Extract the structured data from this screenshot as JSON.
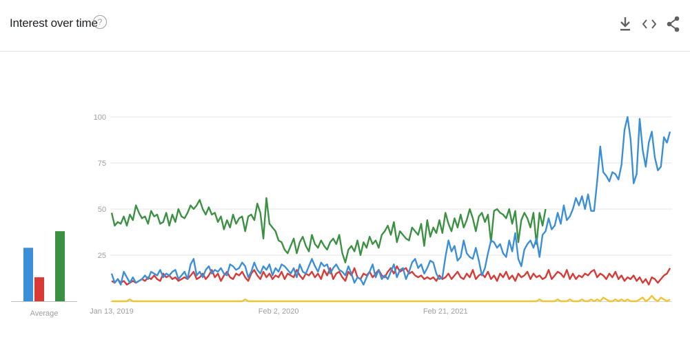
{
  "header": {
    "title": "Interest over time",
    "help_glyph": "?",
    "icons": [
      "download-icon",
      "embed-code-icon",
      "share-icon"
    ]
  },
  "colors": {
    "blue": "#3b8fd9",
    "red": "#d93a36",
    "yellow": "#f2c230",
    "green": "#3b9142",
    "grid": "#e6e6e6",
    "axis_text": "#9e9e9e"
  },
  "average": {
    "label": "Average",
    "values": [
      29,
      13,
      38
    ]
  },
  "chart_data": {
    "type": "line",
    "yticks": [
      25,
      50,
      75,
      100
    ],
    "ylim": [
      0,
      100
    ],
    "xtick_labels": [
      "Jan 13, 2019",
      "Feb 2, 2020",
      "Feb 21, 2021"
    ],
    "xtick_index": [
      0,
      55,
      110
    ],
    "series": [
      {
        "color": "blue",
        "values": [
          15,
          10,
          12,
          9,
          16,
          13,
          10,
          13,
          10,
          11,
          12,
          14,
          12,
          16,
          15,
          14,
          17,
          13,
          15,
          14,
          16,
          17,
          12,
          14,
          16,
          12,
          20,
          23,
          14,
          16,
          13,
          17,
          19,
          15,
          17,
          16,
          18,
          15,
          14,
          20,
          19,
          17,
          18,
          21,
          19,
          13,
          16,
          21,
          17,
          15,
          19,
          17,
          20,
          14,
          18,
          16,
          20,
          19,
          17,
          15,
          18,
          13,
          20,
          16,
          15,
          19,
          23,
          19,
          16,
          21,
          19,
          20,
          15,
          18,
          20,
          17,
          16,
          14,
          19,
          15,
          10,
          13,
          12,
          9,
          13,
          16,
          20,
          13,
          17,
          12,
          14,
          12,
          16,
          20,
          13,
          17,
          18,
          12,
          16,
          21,
          23,
          18,
          20,
          15,
          18,
          22,
          21,
          15,
          12,
          13,
          24,
          33,
          27,
          30,
          22,
          24,
          33,
          26,
          24,
          23,
          29,
          22,
          14,
          18,
          26,
          33,
          32,
          29,
          31,
          26,
          24,
          33,
          27,
          37,
          23,
          19,
          28,
          31,
          33,
          29,
          34,
          24,
          36,
          38,
          45,
          39,
          41,
          48,
          42,
          52,
          44,
          46,
          50,
          56,
          52,
          57,
          50,
          58,
          49,
          49,
          65,
          84,
          70,
          68,
          65,
          70,
          69,
          66,
          74,
          93,
          100,
          88,
          64,
          69,
          99,
          82,
          73,
          86,
          92,
          78,
          71,
          73,
          89,
          86,
          92
        ]
      },
      {
        "color": "red",
        "values": [
          11,
          10,
          12,
          10,
          11,
          9,
          10,
          11,
          10,
          11,
          12,
          11,
          13,
          12,
          14,
          12,
          11,
          15,
          13,
          14,
          12,
          13,
          11,
          12,
          13,
          12,
          14,
          16,
          12,
          13,
          15,
          12,
          14,
          17,
          13,
          15,
          11,
          14,
          16,
          13,
          12,
          15,
          14,
          16,
          13,
          11,
          15,
          17,
          14,
          12,
          16,
          13,
          15,
          12,
          14,
          13,
          16,
          12,
          15,
          14,
          13,
          17,
          14,
          12,
          15,
          14,
          16,
          13,
          15,
          12,
          17,
          14,
          18,
          12,
          15,
          16,
          13,
          11,
          16,
          14,
          18,
          13,
          12,
          15,
          14,
          16,
          13,
          15,
          17,
          14,
          13,
          16,
          18,
          15,
          19,
          16,
          17,
          18,
          15,
          16,
          14,
          13,
          14,
          12,
          13,
          12,
          13,
          11,
          14,
          12,
          13,
          15,
          12,
          14,
          16,
          13,
          12,
          15,
          13,
          17,
          12,
          14,
          15,
          13,
          16,
          12,
          14,
          11,
          15,
          13,
          16,
          12,
          14,
          11,
          15,
          13,
          14,
          16,
          12,
          15,
          13,
          14,
          12,
          13,
          17,
          12,
          14,
          16,
          15,
          13,
          17,
          12,
          15,
          12,
          14,
          13,
          15,
          14,
          16,
          17,
          13,
          15,
          14,
          12,
          15,
          13,
          16,
          12,
          14,
          11,
          13,
          12,
          14,
          11,
          13,
          10,
          12,
          9,
          13,
          12,
          10,
          12,
          14,
          15,
          18
        ]
      },
      {
        "color": "yellow",
        "values": [
          0,
          0,
          0,
          0,
          0,
          0,
          1,
          0,
          0,
          0,
          0,
          0,
          0,
          0,
          0,
          0,
          0,
          0,
          0,
          0,
          0,
          0,
          0,
          0,
          0,
          0,
          0,
          0,
          0,
          0,
          0,
          0,
          0,
          0,
          0,
          0,
          0,
          0,
          0,
          0,
          0,
          0,
          0,
          0,
          1,
          0,
          0,
          0,
          0,
          0,
          0,
          0,
          0,
          0,
          0,
          0,
          0,
          0,
          0,
          0,
          0,
          0,
          0,
          0,
          0,
          0,
          0,
          0,
          0,
          0,
          0,
          0,
          0,
          0,
          0,
          0,
          0,
          0,
          0,
          0,
          0,
          0,
          0,
          0,
          0,
          0,
          0,
          0,
          0,
          0,
          0,
          0,
          0,
          0,
          0,
          0,
          0,
          0,
          0,
          0,
          0,
          0,
          0,
          0,
          0,
          0,
          0,
          0,
          0,
          0,
          0,
          0,
          0,
          0,
          0,
          0,
          0,
          0,
          0,
          0,
          0,
          0,
          0,
          0,
          0,
          0,
          0,
          0,
          0,
          0,
          0,
          0,
          0,
          0,
          0,
          0,
          0,
          0,
          0,
          0,
          0,
          1,
          0,
          0,
          0,
          0,
          0,
          1,
          0,
          0,
          0,
          1,
          0,
          0,
          0,
          1,
          0,
          0,
          1,
          0,
          1,
          0,
          2,
          1,
          0,
          0,
          1,
          0,
          1,
          0,
          1,
          0,
          0,
          0,
          1,
          2,
          0,
          1,
          3,
          1,
          0,
          2,
          1,
          0,
          1
        ]
      },
      {
        "color": "green",
        "values": [
          48,
          41,
          43,
          42,
          46,
          41,
          47,
          44,
          52,
          48,
          45,
          46,
          42,
          49,
          46,
          47,
          42,
          43,
          48,
          41,
          47,
          43,
          50,
          46,
          45,
          48,
          52,
          50,
          52,
          55,
          50,
          47,
          51,
          47,
          48,
          43,
          46,
          39,
          44,
          40,
          47,
          42,
          45,
          46,
          38,
          46,
          47,
          44,
          53,
          48,
          34,
          56,
          42,
          40,
          38,
          33,
          32,
          28,
          26,
          30,
          34,
          26,
          32,
          35,
          30,
          27,
          36,
          31,
          29,
          33,
          30,
          28,
          32,
          34,
          31,
          36,
          26,
          21,
          28,
          30,
          27,
          33,
          25,
          32,
          29,
          35,
          31,
          33,
          29,
          36,
          38,
          41,
          36,
          43,
          32,
          38,
          36,
          34,
          33,
          40,
          38,
          36,
          42,
          30,
          44,
          35,
          40,
          37,
          44,
          37,
          48,
          42,
          38,
          45,
          40,
          47,
          40,
          44,
          50,
          45,
          38,
          46,
          48,
          43,
          47,
          32,
          49,
          50,
          48,
          47,
          45,
          50,
          42,
          49,
          32,
          44,
          48,
          45,
          40,
          48,
          31,
          48,
          41,
          50
        ]
      }
    ]
  }
}
